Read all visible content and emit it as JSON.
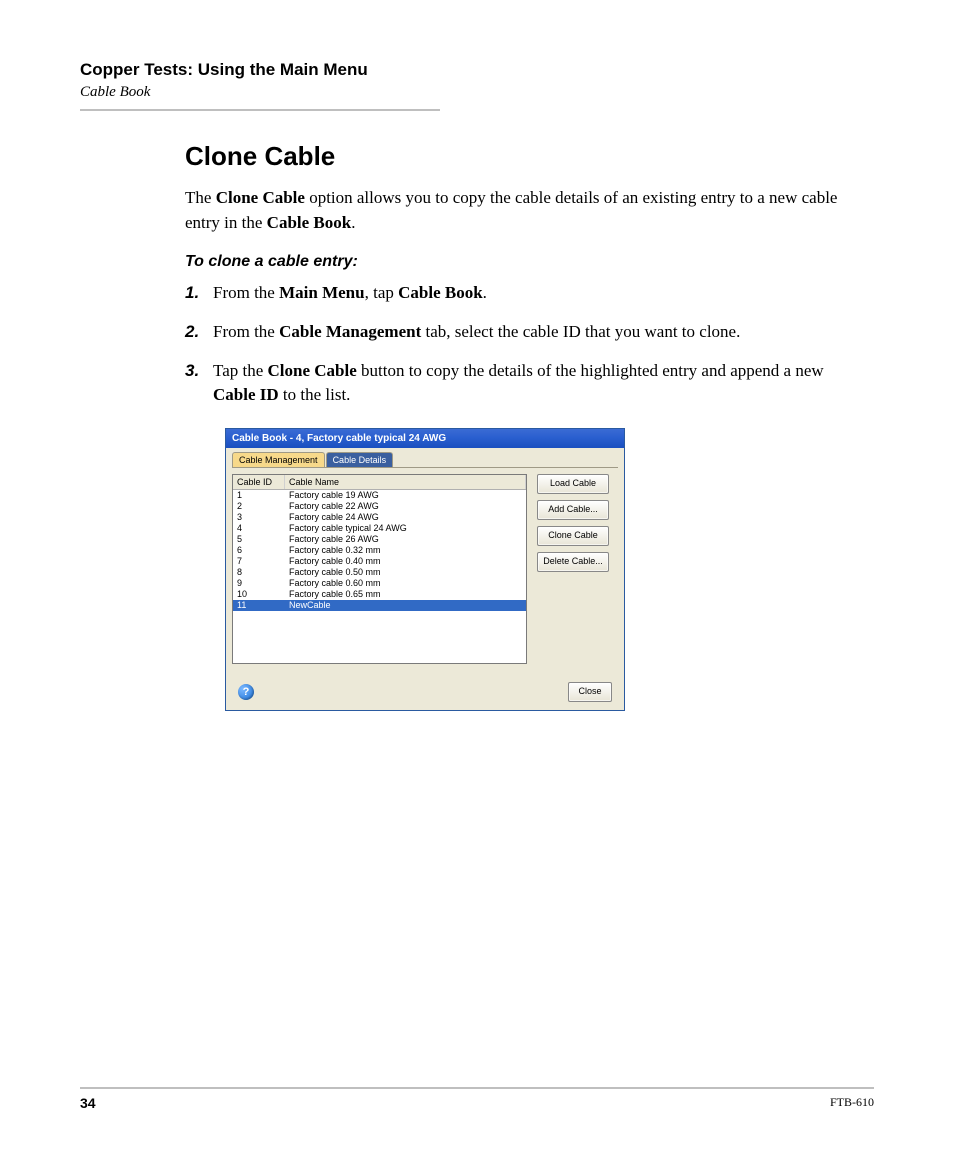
{
  "header": {
    "title": "Copper Tests: Using the Main Menu",
    "subtitle": "Cable Book"
  },
  "section": {
    "title": "Clone Cable",
    "intro_pre": "The ",
    "intro_b1": "Clone Cable",
    "intro_mid": " option allows you to copy the cable details of an existing entry to a new cable entry in the ",
    "intro_b2": "Cable Book",
    "intro_post": ".",
    "subhead": "To clone a cable entry:",
    "steps": {
      "s1_num": "1.",
      "s1_a": "From the ",
      "s1_b1": "Main Menu",
      "s1_b": ", tap ",
      "s1_b2": "Cable Book",
      "s1_c": ".",
      "s2_num": "2.",
      "s2_a": "From the ",
      "s2_b1": "Cable Management",
      "s2_b": " tab, select the cable ID that you want to clone.",
      "s3_num": "3.",
      "s3_a": "Tap the ",
      "s3_b1": "Clone Cable",
      "s3_b": " button to copy the details of the highlighted entry and append a new ",
      "s3_b2": "Cable ID",
      "s3_c": " to the list."
    }
  },
  "dialog": {
    "title": "Cable Book - 4, Factory cable typical 24 AWG",
    "tabs": {
      "mgmt": "Cable Management",
      "details": "Cable Details"
    },
    "columns": {
      "id": "Cable ID",
      "name": "Cable Name"
    },
    "rows": [
      {
        "id": "1",
        "name": "Factory cable 19 AWG"
      },
      {
        "id": "2",
        "name": "Factory cable 22 AWG"
      },
      {
        "id": "3",
        "name": "Factory cable 24 AWG"
      },
      {
        "id": "4",
        "name": "Factory cable typical 24 AWG"
      },
      {
        "id": "5",
        "name": "Factory cable 26 AWG"
      },
      {
        "id": "6",
        "name": "Factory cable 0.32 mm"
      },
      {
        "id": "7",
        "name": "Factory cable 0.40 mm"
      },
      {
        "id": "8",
        "name": "Factory cable 0.50 mm"
      },
      {
        "id": "9",
        "name": "Factory cable 0.60 mm"
      },
      {
        "id": "10",
        "name": "Factory cable 0.65 mm"
      },
      {
        "id": "11",
        "name": "NewCable"
      }
    ],
    "selected_index": 10,
    "buttons": {
      "load": "Load Cable",
      "add": "Add Cable...",
      "clone": "Clone Cable",
      "delete": "Delete Cable...",
      "close": "Close"
    },
    "help_glyph": "?",
    "colors": {
      "titlebar_top": "#3a6bd4",
      "titlebar_bottom": "#1a4fbf",
      "active_tab_bg": "#f7d98a",
      "inactive_tab_bg": "#3a5f9f",
      "selection_bg": "#316ac5",
      "panel_bg": "#ece9d8"
    }
  },
  "footer": {
    "page": "34",
    "model": "FTB-610"
  }
}
